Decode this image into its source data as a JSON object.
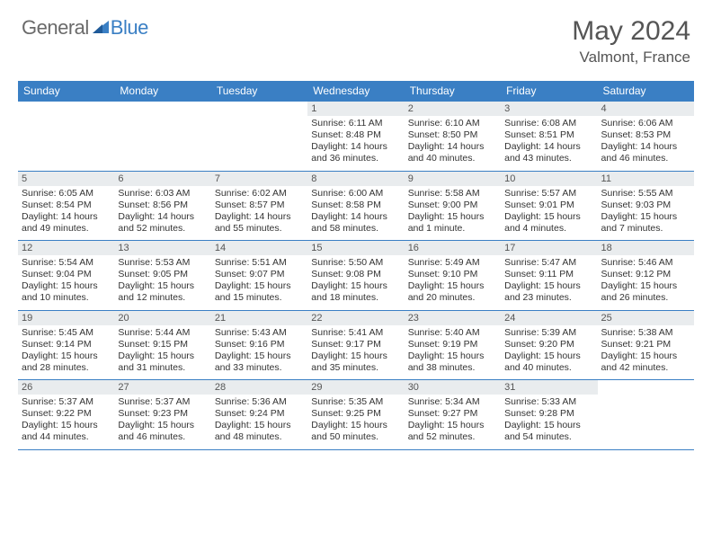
{
  "logo": {
    "general": "General",
    "blue": "Blue"
  },
  "title": "May 2024",
  "location": "Valmont, France",
  "headers": [
    "Sunday",
    "Monday",
    "Tuesday",
    "Wednesday",
    "Thursday",
    "Friday",
    "Saturday"
  ],
  "colors": {
    "headerBg": "#3a7fc4",
    "headerText": "#ffffff",
    "daynumBg": "#e9ecee",
    "borderColor": "#3a7fc4",
    "bodyText": "#333333",
    "titleText": "#555555"
  },
  "weeks": [
    [
      {
        "blank": true
      },
      {
        "blank": true
      },
      {
        "blank": true
      },
      {
        "day": "1",
        "sunrise": "Sunrise: 6:11 AM",
        "sunset": "Sunset: 8:48 PM",
        "daylight1": "Daylight: 14 hours",
        "daylight2": "and 36 minutes."
      },
      {
        "day": "2",
        "sunrise": "Sunrise: 6:10 AM",
        "sunset": "Sunset: 8:50 PM",
        "daylight1": "Daylight: 14 hours",
        "daylight2": "and 40 minutes."
      },
      {
        "day": "3",
        "sunrise": "Sunrise: 6:08 AM",
        "sunset": "Sunset: 8:51 PM",
        "daylight1": "Daylight: 14 hours",
        "daylight2": "and 43 minutes."
      },
      {
        "day": "4",
        "sunrise": "Sunrise: 6:06 AM",
        "sunset": "Sunset: 8:53 PM",
        "daylight1": "Daylight: 14 hours",
        "daylight2": "and 46 minutes."
      }
    ],
    [
      {
        "day": "5",
        "sunrise": "Sunrise: 6:05 AM",
        "sunset": "Sunset: 8:54 PM",
        "daylight1": "Daylight: 14 hours",
        "daylight2": "and 49 minutes."
      },
      {
        "day": "6",
        "sunrise": "Sunrise: 6:03 AM",
        "sunset": "Sunset: 8:56 PM",
        "daylight1": "Daylight: 14 hours",
        "daylight2": "and 52 minutes."
      },
      {
        "day": "7",
        "sunrise": "Sunrise: 6:02 AM",
        "sunset": "Sunset: 8:57 PM",
        "daylight1": "Daylight: 14 hours",
        "daylight2": "and 55 minutes."
      },
      {
        "day": "8",
        "sunrise": "Sunrise: 6:00 AM",
        "sunset": "Sunset: 8:58 PM",
        "daylight1": "Daylight: 14 hours",
        "daylight2": "and 58 minutes."
      },
      {
        "day": "9",
        "sunrise": "Sunrise: 5:58 AM",
        "sunset": "Sunset: 9:00 PM",
        "daylight1": "Daylight: 15 hours",
        "daylight2": "and 1 minute."
      },
      {
        "day": "10",
        "sunrise": "Sunrise: 5:57 AM",
        "sunset": "Sunset: 9:01 PM",
        "daylight1": "Daylight: 15 hours",
        "daylight2": "and 4 minutes."
      },
      {
        "day": "11",
        "sunrise": "Sunrise: 5:55 AM",
        "sunset": "Sunset: 9:03 PM",
        "daylight1": "Daylight: 15 hours",
        "daylight2": "and 7 minutes."
      }
    ],
    [
      {
        "day": "12",
        "sunrise": "Sunrise: 5:54 AM",
        "sunset": "Sunset: 9:04 PM",
        "daylight1": "Daylight: 15 hours",
        "daylight2": "and 10 minutes."
      },
      {
        "day": "13",
        "sunrise": "Sunrise: 5:53 AM",
        "sunset": "Sunset: 9:05 PM",
        "daylight1": "Daylight: 15 hours",
        "daylight2": "and 12 minutes."
      },
      {
        "day": "14",
        "sunrise": "Sunrise: 5:51 AM",
        "sunset": "Sunset: 9:07 PM",
        "daylight1": "Daylight: 15 hours",
        "daylight2": "and 15 minutes."
      },
      {
        "day": "15",
        "sunrise": "Sunrise: 5:50 AM",
        "sunset": "Sunset: 9:08 PM",
        "daylight1": "Daylight: 15 hours",
        "daylight2": "and 18 minutes."
      },
      {
        "day": "16",
        "sunrise": "Sunrise: 5:49 AM",
        "sunset": "Sunset: 9:10 PM",
        "daylight1": "Daylight: 15 hours",
        "daylight2": "and 20 minutes."
      },
      {
        "day": "17",
        "sunrise": "Sunrise: 5:47 AM",
        "sunset": "Sunset: 9:11 PM",
        "daylight1": "Daylight: 15 hours",
        "daylight2": "and 23 minutes."
      },
      {
        "day": "18",
        "sunrise": "Sunrise: 5:46 AM",
        "sunset": "Sunset: 9:12 PM",
        "daylight1": "Daylight: 15 hours",
        "daylight2": "and 26 minutes."
      }
    ],
    [
      {
        "day": "19",
        "sunrise": "Sunrise: 5:45 AM",
        "sunset": "Sunset: 9:14 PM",
        "daylight1": "Daylight: 15 hours",
        "daylight2": "and 28 minutes."
      },
      {
        "day": "20",
        "sunrise": "Sunrise: 5:44 AM",
        "sunset": "Sunset: 9:15 PM",
        "daylight1": "Daylight: 15 hours",
        "daylight2": "and 31 minutes."
      },
      {
        "day": "21",
        "sunrise": "Sunrise: 5:43 AM",
        "sunset": "Sunset: 9:16 PM",
        "daylight1": "Daylight: 15 hours",
        "daylight2": "and 33 minutes."
      },
      {
        "day": "22",
        "sunrise": "Sunrise: 5:41 AM",
        "sunset": "Sunset: 9:17 PM",
        "daylight1": "Daylight: 15 hours",
        "daylight2": "and 35 minutes."
      },
      {
        "day": "23",
        "sunrise": "Sunrise: 5:40 AM",
        "sunset": "Sunset: 9:19 PM",
        "daylight1": "Daylight: 15 hours",
        "daylight2": "and 38 minutes."
      },
      {
        "day": "24",
        "sunrise": "Sunrise: 5:39 AM",
        "sunset": "Sunset: 9:20 PM",
        "daylight1": "Daylight: 15 hours",
        "daylight2": "and 40 minutes."
      },
      {
        "day": "25",
        "sunrise": "Sunrise: 5:38 AM",
        "sunset": "Sunset: 9:21 PM",
        "daylight1": "Daylight: 15 hours",
        "daylight2": "and 42 minutes."
      }
    ],
    [
      {
        "day": "26",
        "sunrise": "Sunrise: 5:37 AM",
        "sunset": "Sunset: 9:22 PM",
        "daylight1": "Daylight: 15 hours",
        "daylight2": "and 44 minutes."
      },
      {
        "day": "27",
        "sunrise": "Sunrise: 5:37 AM",
        "sunset": "Sunset: 9:23 PM",
        "daylight1": "Daylight: 15 hours",
        "daylight2": "and 46 minutes."
      },
      {
        "day": "28",
        "sunrise": "Sunrise: 5:36 AM",
        "sunset": "Sunset: 9:24 PM",
        "daylight1": "Daylight: 15 hours",
        "daylight2": "and 48 minutes."
      },
      {
        "day": "29",
        "sunrise": "Sunrise: 5:35 AM",
        "sunset": "Sunset: 9:25 PM",
        "daylight1": "Daylight: 15 hours",
        "daylight2": "and 50 minutes."
      },
      {
        "day": "30",
        "sunrise": "Sunrise: 5:34 AM",
        "sunset": "Sunset: 9:27 PM",
        "daylight1": "Daylight: 15 hours",
        "daylight2": "and 52 minutes."
      },
      {
        "day": "31",
        "sunrise": "Sunrise: 5:33 AM",
        "sunset": "Sunset: 9:28 PM",
        "daylight1": "Daylight: 15 hours",
        "daylight2": "and 54 minutes."
      },
      {
        "blank": true
      }
    ]
  ]
}
